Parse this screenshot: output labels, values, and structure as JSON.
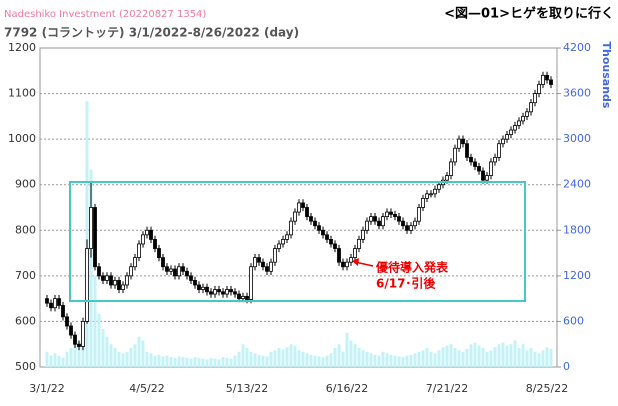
{
  "chart_data": {
    "type": "candlestick",
    "title": "Nadeshiko Investment  (20220827 1354)",
    "heading": "<図—01>ヒゲを取りに行く",
    "subtitle": "7792 (コラントッテ) 3/1/2022-8/26/2022 (day)",
    "categories": [
      "3/1/22",
      null,
      null,
      null,
      null,
      null,
      null,
      null,
      null,
      null,
      null,
      null,
      null,
      null,
      null,
      null,
      null,
      null,
      null,
      null,
      null,
      null,
      null,
      null,
      null,
      "4/5/22",
      null,
      null,
      null,
      null,
      null,
      null,
      null,
      null,
      null,
      null,
      null,
      null,
      null,
      null,
      null,
      null,
      null,
      null,
      null,
      null,
      null,
      null,
      null,
      null,
      "5/13/22",
      null,
      null,
      null,
      null,
      null,
      null,
      null,
      null,
      null,
      null,
      null,
      null,
      null,
      null,
      null,
      null,
      null,
      null,
      null,
      null,
      null,
      null,
      null,
      null,
      "6/16/22",
      null,
      null,
      null,
      null,
      null,
      null,
      null,
      null,
      null,
      null,
      null,
      null,
      null,
      null,
      null,
      null,
      null,
      null,
      null,
      null,
      null,
      null,
      null,
      null,
      "7/21/22",
      null,
      null,
      null,
      null,
      null,
      null,
      null,
      null,
      null,
      null,
      null,
      null,
      null,
      null,
      null,
      null,
      null,
      null,
      null,
      null,
      null,
      null,
      null,
      null,
      "8/25/22",
      null
    ],
    "open": [
      650,
      640,
      630,
      650,
      635,
      610,
      590,
      570,
      550,
      545,
      600,
      760,
      850,
      720,
      700,
      690,
      700,
      680,
      690,
      670,
      680,
      700,
      720,
      740,
      770,
      790,
      800,
      780,
      760,
      740,
      720,
      710,
      715,
      700,
      720,
      710,
      700,
      690,
      680,
      670,
      675,
      665,
      660,
      670,
      665,
      660,
      670,
      665,
      660,
      650,
      655,
      648,
      720,
      740,
      730,
      720,
      710,
      730,
      760,
      770,
      780,
      790,
      820,
      840,
      860,
      850,
      830,
      820,
      810,
      800,
      790,
      780,
      770,
      760,
      730,
      720,
      730,
      740,
      760,
      780,
      800,
      820,
      830,
      820,
      810,
      830,
      840,
      835,
      830,
      820,
      810,
      800,
      810,
      820,
      850,
      870,
      880,
      880,
      890,
      900,
      910,
      920,
      950,
      980,
      1000,
      990,
      960,
      950,
      940,
      930,
      910,
      920,
      950,
      960,
      990,
      1000,
      1010,
      1020,
      1030,
      1040,
      1050,
      1060,
      1080,
      1100,
      1120,
      1140,
      1130
    ],
    "high": [
      658,
      648,
      658,
      658,
      643,
      618,
      598,
      578,
      558,
      608,
      780,
      905,
      858,
      728,
      708,
      708,
      708,
      698,
      698,
      688,
      708,
      728,
      748,
      778,
      798,
      808,
      808,
      788,
      768,
      748,
      728,
      723,
      723,
      728,
      728,
      718,
      708,
      698,
      688,
      683,
      683,
      673,
      678,
      678,
      673,
      678,
      678,
      673,
      668,
      663,
      663,
      728,
      748,
      748,
      738,
      728,
      738,
      768,
      778,
      788,
      798,
      828,
      848,
      868,
      868,
      858,
      838,
      828,
      818,
      808,
      798,
      788,
      778,
      768,
      738,
      738,
      748,
      768,
      788,
      808,
      828,
      838,
      838,
      828,
      838,
      848,
      848,
      843,
      838,
      828,
      818,
      818,
      828,
      858,
      878,
      888,
      888,
      898,
      908,
      918,
      928,
      958,
      988,
      1008,
      1008,
      998,
      968,
      958,
      948,
      938,
      928,
      958,
      968,
      998,
      1008,
      1018,
      1028,
      1038,
      1048,
      1058,
      1068,
      1088,
      1108,
      1128,
      1148,
      1148,
      1138
    ],
    "low": [
      632,
      622,
      622,
      627,
      602,
      582,
      562,
      542,
      537,
      537,
      595,
      740,
      712,
      692,
      682,
      682,
      672,
      672,
      662,
      662,
      672,
      692,
      712,
      732,
      762,
      782,
      772,
      752,
      732,
      712,
      702,
      702,
      692,
      692,
      702,
      692,
      682,
      672,
      662,
      662,
      657,
      652,
      652,
      657,
      652,
      652,
      657,
      652,
      642,
      642,
      640,
      640,
      712,
      722,
      712,
      702,
      702,
      722,
      752,
      762,
      772,
      782,
      812,
      832,
      842,
      822,
      812,
      802,
      792,
      782,
      772,
      762,
      752,
      722,
      712,
      712,
      722,
      732,
      752,
      772,
      792,
      812,
      812,
      802,
      802,
      822,
      827,
      822,
      812,
      802,
      792,
      792,
      802,
      812,
      842,
      862,
      872,
      872,
      882,
      892,
      902,
      912,
      942,
      972,
      982,
      952,
      942,
      932,
      922,
      902,
      902,
      912,
      942,
      952,
      982,
      992,
      1002,
      1012,
      1022,
      1032,
      1042,
      1052,
      1072,
      1092,
      1112,
      1122,
      1112
    ],
    "close": [
      640,
      630,
      650,
      635,
      610,
      590,
      570,
      550,
      545,
      600,
      760,
      850,
      720,
      700,
      690,
      700,
      680,
      690,
      670,
      680,
      700,
      720,
      740,
      770,
      790,
      800,
      780,
      760,
      740,
      720,
      710,
      715,
      700,
      720,
      710,
      700,
      690,
      680,
      670,
      675,
      665,
      660,
      670,
      665,
      660,
      670,
      665,
      660,
      650,
      655,
      648,
      720,
      740,
      730,
      720,
      710,
      730,
      760,
      770,
      780,
      790,
      820,
      840,
      860,
      850,
      830,
      820,
      810,
      800,
      790,
      780,
      770,
      760,
      730,
      720,
      730,
      740,
      760,
      780,
      800,
      820,
      830,
      820,
      810,
      830,
      840,
      835,
      830,
      820,
      810,
      800,
      810,
      820,
      850,
      870,
      880,
      880,
      890,
      900,
      910,
      920,
      950,
      980,
      1000,
      990,
      960,
      950,
      940,
      930,
      910,
      920,
      950,
      960,
      990,
      1000,
      1010,
      1020,
      1030,
      1040,
      1050,
      1060,
      1080,
      1100,
      1120,
      1140,
      1130,
      1120
    ],
    "volume": {
      "axis": "y2",
      "color": "#c4f3f7",
      "values": [
        200,
        150,
        180,
        150,
        120,
        200,
        250,
        300,
        350,
        600,
        3500,
        2600,
        1200,
        700,
        500,
        400,
        300,
        250,
        200,
        180,
        200,
        250,
        300,
        400,
        350,
        200,
        180,
        150,
        160,
        140,
        150,
        130,
        120,
        140,
        130,
        120,
        110,
        130,
        120,
        110,
        100,
        120,
        110,
        100,
        130,
        120,
        110,
        150,
        200,
        300,
        250,
        200,
        180,
        160,
        150,
        140,
        200,
        220,
        250,
        230,
        260,
        300,
        280,
        220,
        200,
        180,
        160,
        150,
        140,
        130,
        150,
        180,
        250,
        300,
        200,
        450,
        350,
        300,
        250,
        220,
        200,
        180,
        160,
        150,
        200,
        180,
        160,
        150,
        140,
        130,
        150,
        160,
        180,
        200,
        220,
        250,
        200,
        180,
        220,
        260,
        280,
        300,
        250,
        220,
        200,
        240,
        300,
        320,
        280,
        250,
        200,
        220,
        260,
        300,
        320,
        280,
        300,
        350,
        250,
        300,
        220,
        250,
        200,
        180,
        220,
        260,
        240
      ]
    },
    "up_color": "#ffffff",
    "down_color": "#000000",
    "ylim": [
      500,
      1200
    ],
    "yticks": [
      500,
      600,
      700,
      800,
      900,
      1000,
      1100,
      1200
    ],
    "y2lim": [
      0,
      4200
    ],
    "y2ticks": [
      0,
      600,
      1200,
      1800,
      2400,
      3000,
      3600,
      4200
    ],
    "y2label": "Thousands",
    "grid": true,
    "annotation": [
      "優待導入発表",
      "6/17･引後"
    ]
  }
}
